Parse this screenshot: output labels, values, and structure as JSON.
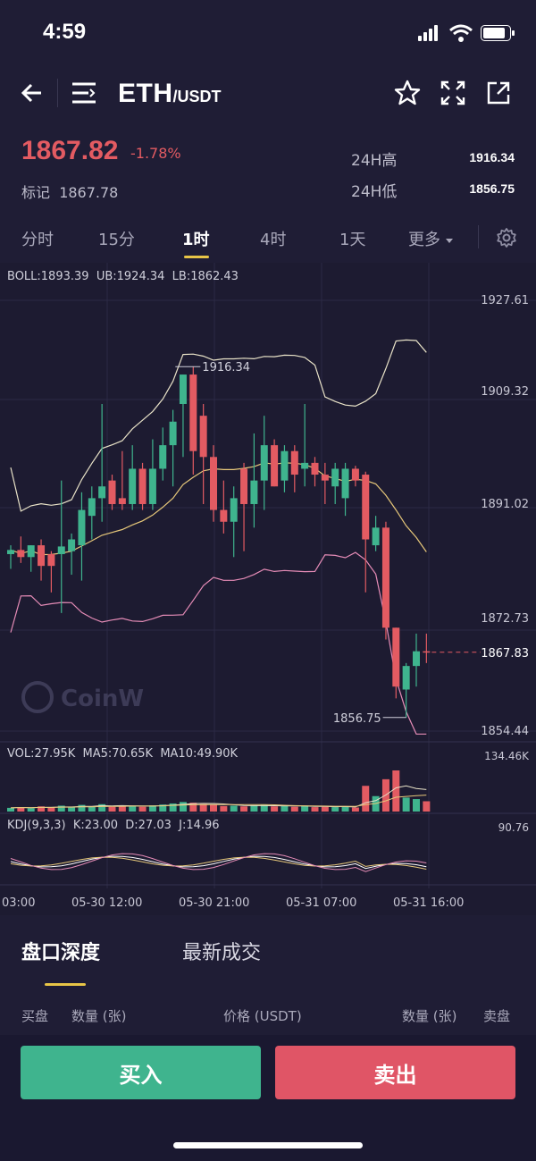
{
  "status_bar": {
    "time": "4:59"
  },
  "header": {
    "pair_base": "ETH",
    "pair_quote": "/USDT"
  },
  "ticker": {
    "last_price": "1867.82",
    "change": "-1.78%",
    "mark_label": "标记",
    "mark_price": "1867.78",
    "high_label": "24H高",
    "high_value": "1916.34",
    "low_label": "24H低",
    "low_value": "1856.75"
  },
  "intervals": [
    {
      "label": "分时"
    },
    {
      "label": "15分"
    },
    {
      "label": "1时",
      "active": true
    },
    {
      "label": "4时"
    },
    {
      "label": "1天"
    },
    {
      "label": "更多"
    }
  ],
  "chart": {
    "boll_text": "BOLL:1893.39",
    "ub_text": "UB:1924.34",
    "lb_text": "LB:1862.43",
    "price_ticks": [
      "1927.61",
      "1909.32",
      "1891.02",
      "1872.73",
      "1854.44"
    ],
    "current_price_tag": "1867.83",
    "high_annotation": "1916.34",
    "low_annotation": "1856.75",
    "watermark": "CoinW",
    "vol_text": "VOL:27.95K",
    "ma5_text": "MA5:70.65K",
    "ma10_text": "MA10:49.90K",
    "vol_max": "134.46K",
    "kdj_text": "KDJ(9,3,3)",
    "k_text": "K:23.00",
    "d_text": "D:27.03",
    "j_text": "J:14.96",
    "kdj_max": "90.76",
    "time_labels": [
      "03:00",
      "05-30 12:00",
      "05-30 21:00",
      "05-31 07:00",
      "05-31 16:00"
    ],
    "up_color": "#3fb48e",
    "down_color": "#e35b62"
  },
  "chart_data": {
    "type": "candlestick",
    "price_range": [
      1854.44,
      1927.61
    ],
    "candles": [
      {
        "o": 1884.5,
        "h": 1886.0,
        "l": 1882.0,
        "c": 1885.2,
        "up": true
      },
      {
        "o": 1885.2,
        "h": 1887.5,
        "l": 1883.0,
        "c": 1884.0,
        "up": false
      },
      {
        "o": 1884.0,
        "h": 1886.0,
        "l": 1881.5,
        "c": 1886.0,
        "up": true
      },
      {
        "o": 1886.0,
        "h": 1887.0,
        "l": 1880.0,
        "c": 1882.5,
        "up": false
      },
      {
        "o": 1882.5,
        "h": 1885.0,
        "l": 1878.0,
        "c": 1884.5,
        "up": false
      },
      {
        "o": 1884.5,
        "h": 1897.0,
        "l": 1874.5,
        "c": 1885.8,
        "up": true
      },
      {
        "o": 1885.0,
        "h": 1888.0,
        "l": 1881.0,
        "c": 1887.0,
        "up": true
      },
      {
        "o": 1886.0,
        "h": 1895.0,
        "l": 1880.0,
        "c": 1892.0,
        "up": true
      },
      {
        "o": 1891.0,
        "h": 1896.0,
        "l": 1887.0,
        "c": 1894.0,
        "up": true
      },
      {
        "o": 1894.0,
        "h": 1910.0,
        "l": 1890.0,
        "c": 1896.0,
        "up": true
      },
      {
        "o": 1897.0,
        "h": 1898.0,
        "l": 1892.0,
        "c": 1893.0,
        "up": false
      },
      {
        "o": 1893.0,
        "h": 1902.0,
        "l": 1892.0,
        "c": 1894.0,
        "up": false
      },
      {
        "o": 1893.0,
        "h": 1903.0,
        "l": 1892.0,
        "c": 1899.0,
        "up": true
      },
      {
        "o": 1893.0,
        "h": 1900.0,
        "l": 1892.0,
        "c": 1899.0,
        "up": false
      },
      {
        "o": 1893.0,
        "h": 1904.0,
        "l": 1892.0,
        "c": 1899.0,
        "up": true
      },
      {
        "o": 1899.0,
        "h": 1906.0,
        "l": 1897.0,
        "c": 1903.0,
        "up": true
      },
      {
        "o": 1903.0,
        "h": 1909.0,
        "l": 1896.0,
        "c": 1907.0,
        "up": true
      },
      {
        "o": 1910.0,
        "h": 1915.0,
        "l": 1901.0,
        "c": 1915.0,
        "up": true
      },
      {
        "o": 1915.0,
        "h": 1916.34,
        "l": 1898.0,
        "c": 1902.0,
        "up": false
      },
      {
        "o": 1908.0,
        "h": 1910.0,
        "l": 1893.0,
        "c": 1901.0,
        "up": false
      },
      {
        "o": 1901.0,
        "h": 1903.0,
        "l": 1890.0,
        "c": 1892.0,
        "up": false
      },
      {
        "o": 1892.0,
        "h": 1897.0,
        "l": 1888.0,
        "c": 1890.0,
        "up": false
      },
      {
        "o": 1890.0,
        "h": 1896.0,
        "l": 1884.0,
        "c": 1894.0,
        "up": true
      },
      {
        "o": 1893.0,
        "h": 1900.0,
        "l": 1885.0,
        "c": 1899.0,
        "up": false
      },
      {
        "o": 1893.0,
        "h": 1905.0,
        "l": 1889.0,
        "c": 1897.0,
        "up": true
      },
      {
        "o": 1897.0,
        "h": 1908.0,
        "l": 1892.0,
        "c": 1903.0,
        "up": true
      },
      {
        "o": 1903.0,
        "h": 1904.0,
        "l": 1896.0,
        "c": 1896.0,
        "up": false
      },
      {
        "o": 1897.0,
        "h": 1903.0,
        "l": 1895.0,
        "c": 1902.0,
        "up": true
      },
      {
        "o": 1902.0,
        "h": 1903.0,
        "l": 1895.0,
        "c": 1898.0,
        "up": false
      },
      {
        "o": 1899.0,
        "h": 1910.0,
        "l": 1896.0,
        "c": 1900.0,
        "up": true
      },
      {
        "o": 1900.0,
        "h": 1901.0,
        "l": 1896.0,
        "c": 1898.0,
        "up": false
      },
      {
        "o": 1898.0,
        "h": 1900.0,
        "l": 1893.0,
        "c": 1897.0,
        "up": false
      },
      {
        "o": 1899.0,
        "h": 1900.0,
        "l": 1893.0,
        "c": 1896.0,
        "up": true
      },
      {
        "o": 1899.0,
        "h": 1900.0,
        "l": 1891.0,
        "c": 1894.0,
        "up": true
      },
      {
        "o": 1899.0,
        "h": 1899.5,
        "l": 1896.0,
        "c": 1897.0,
        "up": false
      },
      {
        "o": 1898.0,
        "h": 1898.5,
        "l": 1878.0,
        "c": 1887.0,
        "up": false
      },
      {
        "o": 1889.0,
        "h": 1891.0,
        "l": 1885.0,
        "c": 1886.0,
        "up": true
      },
      {
        "o": 1889.0,
        "h": 1890.0,
        "l": 1870.0,
        "c": 1872.0,
        "up": false
      },
      {
        "o": 1872.0,
        "h": 1872.0,
        "l": 1860.0,
        "c": 1862.0,
        "up": false
      },
      {
        "o": 1861.5,
        "h": 1866.0,
        "l": 1856.75,
        "c": 1865.5,
        "up": true
      },
      {
        "o": 1865.5,
        "h": 1871.0,
        "l": 1862.0,
        "c": 1868.0,
        "up": true
      },
      {
        "o": 1868.0,
        "h": 1871.0,
        "l": 1866.0,
        "c": 1867.82,
        "up": false
      }
    ],
    "volumes": [
      10,
      12,
      9,
      14,
      11,
      16,
      12,
      18,
      14,
      20,
      13,
      15,
      16,
      13,
      17,
      19,
      22,
      26,
      24,
      20,
      18,
      15,
      16,
      14,
      17,
      18,
      14,
      15,
      13,
      16,
      12,
      13,
      12,
      14,
      11,
      70,
      42,
      88,
      112,
      38,
      34,
      28
    ]
  },
  "orderbook": {
    "tab_depth": "盘口深度",
    "tab_trades": "最新成交",
    "col_bid": "买盘",
    "col_bid_qty": "数量 (张)",
    "col_price": "价格 (USDT)",
    "col_ask_qty": "数量 (张)",
    "col_ask": "卖盘"
  },
  "actions": {
    "buy_label": "买入",
    "sell_label": "卖出"
  }
}
